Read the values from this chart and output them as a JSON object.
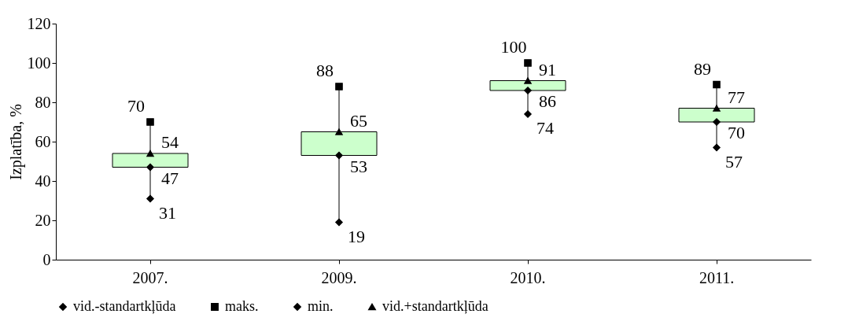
{
  "chart_data": {
    "type": "scatter",
    "ylabel": "Izplatība, %",
    "categories": [
      "2007.",
      "2009.",
      "2010.",
      "2011."
    ],
    "ylim": [
      0,
      120
    ],
    "yticks": [
      0,
      20,
      40,
      60,
      80,
      100,
      120
    ],
    "grid": false,
    "legend": "bottom",
    "series": [
      {
        "type": "bar",
        "color": "#ccffcc",
        "base": [
          47,
          53,
          86,
          70
        ],
        "values": [
          7,
          12,
          5,
          7
        ]
      },
      {
        "name": "vid.-standartkļūda",
        "color": "#000000",
        "marker": "diamond",
        "values": [
          47,
          53,
          86,
          70
        ],
        "value_labels": [
          "47",
          "53",
          "86",
          "70"
        ]
      },
      {
        "name": "maks.",
        "color": "#000000",
        "marker": "square",
        "values": [
          70,
          88,
          100,
          89
        ],
        "value_labels": [
          "70",
          "88",
          "100",
          "89"
        ]
      },
      {
        "name": "min.",
        "color": "#000000",
        "marker": "diamond",
        "values": [
          31,
          19,
          74,
          57
        ],
        "value_labels": [
          "31",
          "19",
          "74",
          "57"
        ]
      },
      {
        "name": "vid.+standartkļūda",
        "color": "#000000",
        "marker": "triangle",
        "values": [
          54,
          65,
          91,
          77
        ],
        "value_labels": [
          "54",
          "65",
          "91",
          "77"
        ]
      }
    ]
  }
}
